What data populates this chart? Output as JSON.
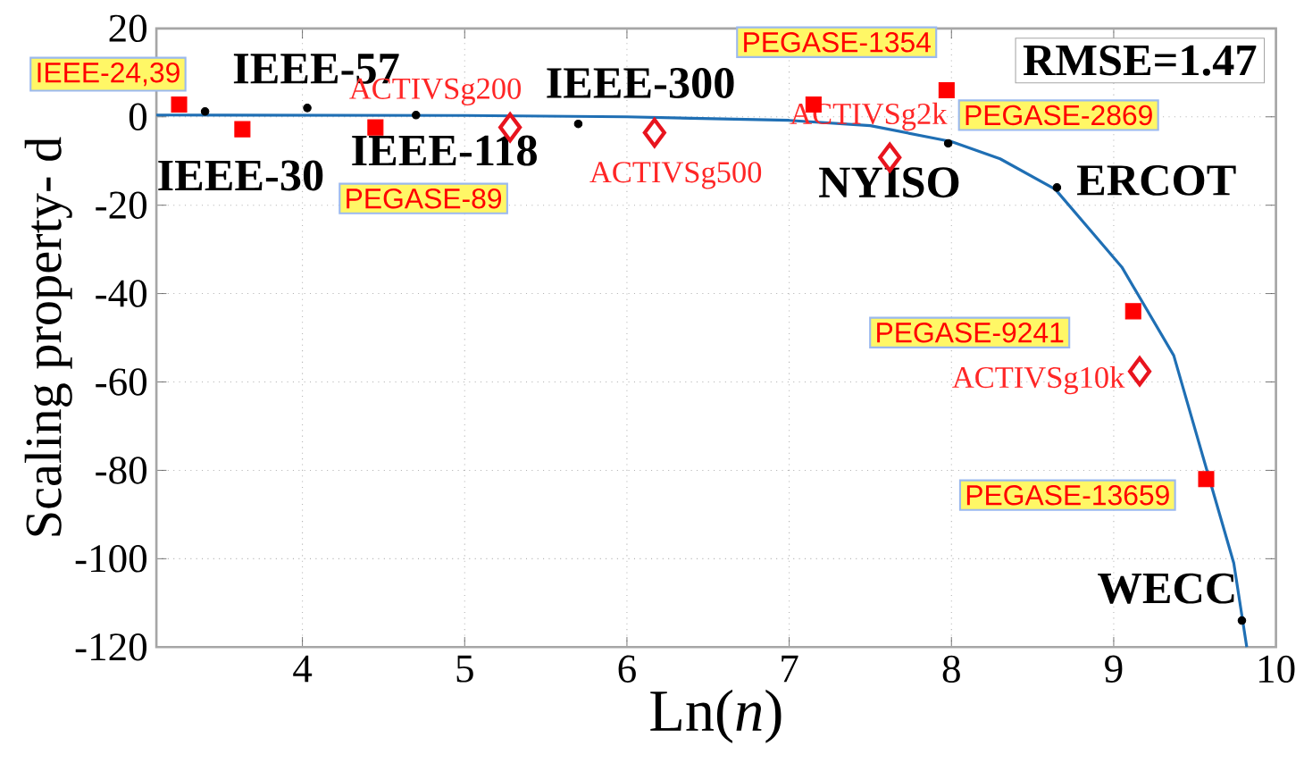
{
  "chart_data": {
    "type": "scatter",
    "xlabel": "Ln(*n*)",
    "ylabel": "Scaling property- d",
    "xlim": [
      3.1,
      10
    ],
    "ylim": [
      -120,
      20
    ],
    "xticks": [
      4,
      5,
      6,
      7,
      8,
      9,
      10
    ],
    "yticks": [
      -120,
      -100,
      -80,
      -60,
      -40,
      -20,
      0,
      20
    ],
    "grid": true,
    "series": [
      {
        "marker": "circle",
        "color": "#000000",
        "x": [
          3.4,
          4.03,
          4.7,
          5.7,
          7.98,
          8.65,
          9.79
        ],
        "values": [
          1.2,
          2,
          0.4,
          -1.6,
          -6,
          -16,
          -114
        ]
      },
      {
        "marker": "square",
        "color": "#ff0000",
        "x": [
          3.24,
          3.63,
          4.45,
          7.15,
          7.97,
          9.12,
          9.57
        ],
        "values": [
          2.8,
          -2.8,
          -2.4,
          2.8,
          6,
          -44,
          -82
        ]
      },
      {
        "marker": "diamond",
        "color": "#e8141e",
        "x": [
          5.28,
          6.17,
          7.62,
          9.16
        ],
        "values": [
          -2.4,
          -3.6,
          -9.2,
          -57.6
        ]
      },
      {
        "type": "line",
        "marker": "none",
        "color": "#1f6fb4",
        "x": [
          3.1,
          5,
          6,
          7,
          7.5,
          8,
          8.3,
          8.64,
          9.05,
          9.37,
          9.59,
          9.74,
          9.82
        ],
        "values": [
          0.4,
          0.3,
          0,
          -0.8,
          -2,
          -5.6,
          -9.5,
          -16.4,
          -34,
          -54,
          -82,
          -101,
          -120
        ]
      }
    ],
    "annotations": [
      {
        "text": "IEEE-24,39",
        "x": 3.24,
        "y": 2.8
      },
      {
        "text": "IEEE-57",
        "x": 4.03,
        "y": 2
      },
      {
        "text": "IEEE-30",
        "x": 3.4,
        "y": 1.2
      },
      {
        "text": "IEEE-118",
        "x": 4.7,
        "y": 0.4
      },
      {
        "text": "IEEE-300",
        "x": 5.7,
        "y": -1.6
      },
      {
        "text": "PEGASE-89",
        "x": 4.45,
        "y": -2.4
      },
      {
        "text": "ACTIVSg200",
        "x": 5.28,
        "y": -2.4
      },
      {
        "text": "ACTIVSg500",
        "x": 6.17,
        "y": -3.6
      },
      {
        "text": "PEGASE-1354",
        "x": 7.15,
        "y": 2.8
      },
      {
        "text": "ACTIVSg2k",
        "x": 7.62,
        "y": -9.2
      },
      {
        "text": "PEGASE-2869",
        "x": 7.97,
        "y": 6
      },
      {
        "text": "NYISO",
        "x": 7.98,
        "y": -6
      },
      {
        "text": "ERCOT",
        "x": 8.65,
        "y": -16
      },
      {
        "text": "PEGASE-9241",
        "x": 9.12,
        "y": -44
      },
      {
        "text": "ACTIVSg10k",
        "x": 9.16,
        "y": -57.6
      },
      {
        "text": "PEGASE-13659",
        "x": 9.57,
        "y": -82
      },
      {
        "text": "WECC",
        "x": 9.79,
        "y": -114
      },
      "RMSE=1.47"
    ]
  }
}
